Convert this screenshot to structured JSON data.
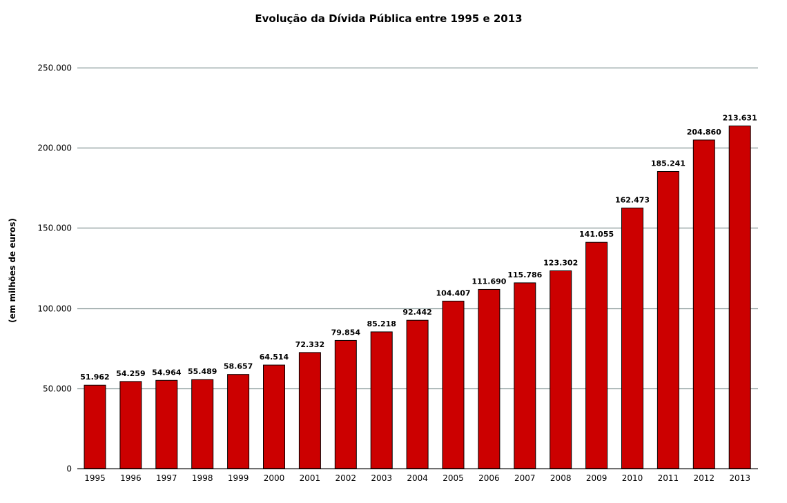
{
  "chart_data": {
    "type": "bar",
    "title": "Evolução da Dívida Pública entre 1995 e 2013",
    "xlabel": "",
    "ylabel": "(em milhões de euros)",
    "categories": [
      "1995",
      "1996",
      "1997",
      "1998",
      "1999",
      "2000",
      "2001",
      "2002",
      "2003",
      "2004",
      "2005",
      "2006",
      "2007",
      "2008",
      "2009",
      "2010",
      "2011",
      "2012",
      "2013"
    ],
    "values": [
      51962,
      54259,
      54964,
      55489,
      58657,
      64514,
      72332,
      79854,
      85218,
      92442,
      104407,
      111690,
      115786,
      123302,
      141055,
      162473,
      185241,
      204860,
      213631
    ],
    "data_labels": [
      "51.962",
      "54.259",
      "54.964",
      "55.489",
      "58.657",
      "64.514",
      "72.332",
      "79.854",
      "85.218",
      "92.442",
      "104.407",
      "111.690",
      "115.786",
      "123.302",
      "141.055",
      "162.473",
      "185.241",
      "204.860",
      "213.631"
    ],
    "y_ticks": [
      0,
      50000,
      100000,
      150000,
      200000,
      250000
    ],
    "y_tick_labels": [
      "0",
      "50.000",
      "100.000",
      "150.000",
      "200.000",
      "250.000"
    ],
    "ylim": [
      0,
      250000
    ],
    "grid": true,
    "legend": "none",
    "colors": {
      "bar": "#cc0000",
      "bar_stroke": "#000000",
      "grid": "#7f9191",
      "axis": "#000000"
    }
  }
}
